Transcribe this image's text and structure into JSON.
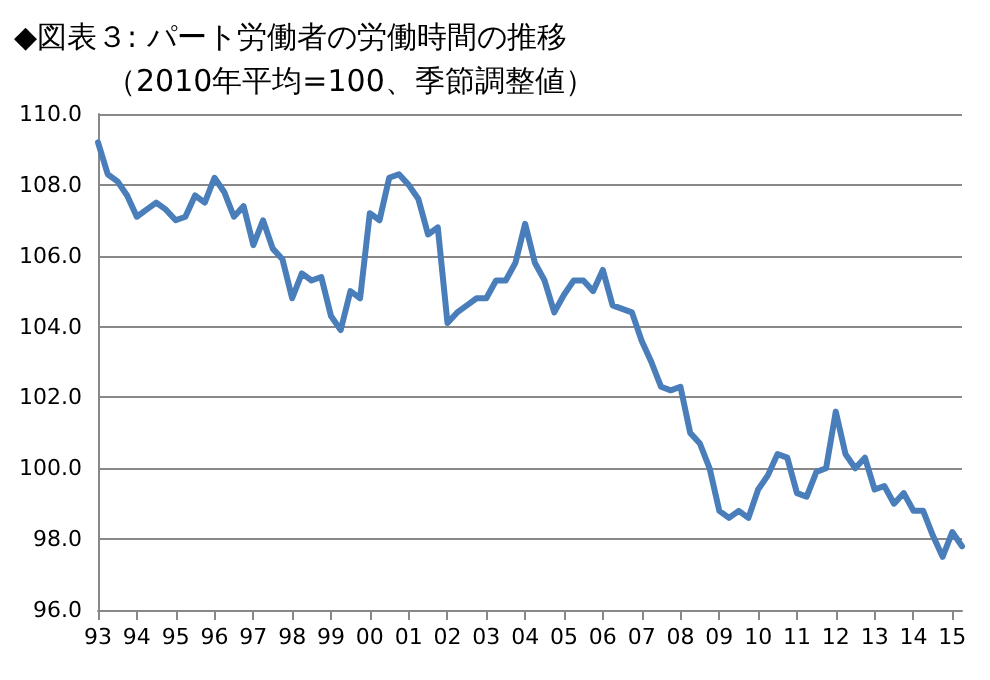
{
  "chart_data": {
    "type": "line",
    "title": "◆図表３: パート労働者の労働時間の推移",
    "subtitle": "（2010年平均=100、季節調整値）",
    "categories": [
      "93",
      null,
      null,
      null,
      "94",
      null,
      null,
      null,
      "95",
      null,
      null,
      null,
      "96",
      null,
      null,
      null,
      "97",
      null,
      null,
      null,
      "98",
      null,
      null,
      null,
      "99",
      null,
      null,
      null,
      "00",
      null,
      null,
      null,
      "01",
      null,
      null,
      null,
      "02",
      null,
      null,
      null,
      "03",
      null,
      null,
      null,
      "04",
      null,
      null,
      null,
      "05",
      null,
      null,
      null,
      "06",
      null,
      null,
      null,
      "07",
      null,
      null,
      null,
      "08",
      null,
      null,
      null,
      "09",
      null,
      null,
      null,
      "10",
      null,
      null,
      null,
      "11",
      null,
      null,
      null,
      "12",
      null,
      null,
      null,
      "13",
      null,
      null,
      null,
      "14",
      null,
      null,
      null,
      "15",
      null
    ],
    "series": [
      {
        "color": "#4a7ebb",
        "values": [
          109.2,
          108.3,
          108.1,
          107.7,
          107.1,
          107.3,
          107.5,
          107.3,
          107.0,
          107.1,
          107.7,
          107.5,
          108.2,
          107.8,
          107.1,
          107.4,
          106.3,
          107.0,
          106.2,
          105.9,
          104.8,
          105.5,
          105.3,
          105.4,
          104.3,
          103.9,
          105.0,
          104.8,
          107.2,
          107.0,
          108.2,
          108.3,
          108.0,
          107.6,
          106.6,
          106.8,
          104.1,
          104.4,
          104.6,
          104.8,
          104.8,
          105.3,
          105.3,
          105.8,
          106.9,
          105.8,
          105.3,
          104.4,
          104.9,
          105.3,
          105.3,
          105.0,
          105.6,
          104.6,
          104.5,
          104.4,
          103.6,
          103.0,
          102.3,
          102.2,
          102.3,
          101.0,
          100.7,
          100.0,
          98.8,
          98.6,
          98.8,
          98.6,
          99.4,
          99.8,
          100.4,
          100.3,
          99.3,
          99.2,
          99.9,
          100.0,
          101.6,
          100.4,
          100.0,
          100.3,
          99.4,
          99.5,
          99.0,
          99.3,
          98.8,
          98.8,
          98.1,
          97.5,
          98.2,
          97.8
        ]
      }
    ],
    "ylim": [
      96,
      110
    ],
    "yticks": [
      {
        "value": 96,
        "label": "96.0"
      },
      {
        "value": 98,
        "label": "98.0"
      },
      {
        "value": 100,
        "label": "100.0"
      },
      {
        "value": 102,
        "label": "102.0"
      },
      {
        "value": 104,
        "label": "104.0"
      },
      {
        "value": 106,
        "label": "106.0"
      },
      {
        "value": 108,
        "label": "108.0"
      },
      {
        "value": 110,
        "label": "110.0"
      }
    ],
    "grid": "y",
    "marker": "none",
    "line_style": "solid"
  }
}
